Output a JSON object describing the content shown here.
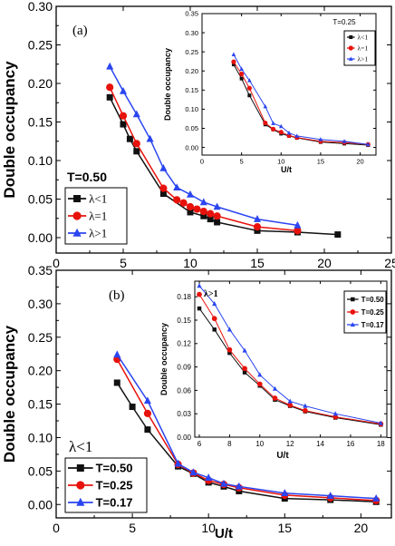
{
  "colors": {
    "black": "#111111",
    "red": "#e8120c",
    "blue": "#2b45f0"
  },
  "chart_data": [
    {
      "id": "a",
      "type": "line",
      "panel_label": "(a)",
      "annotation": "T=0.50",
      "ylabel": "Double occupancy",
      "xlabel": "",
      "xlim": [
        0,
        25
      ],
      "ylim": [
        -0.02,
        0.3
      ],
      "xticks": [
        0,
        5,
        10,
        15,
        20,
        25
      ],
      "yticks": [
        0.0,
        0.05,
        0.1,
        0.15,
        0.2,
        0.25,
        0.3
      ],
      "legend_position": "bottom-left",
      "series": [
        {
          "name": "λ<1",
          "color": "#111111",
          "marker": "square",
          "x": [
            4,
            5,
            5.5,
            6,
            8,
            10,
            11,
            11.5,
            12,
            15,
            18,
            21
          ],
          "y": [
            0.182,
            0.147,
            0.128,
            0.112,
            0.057,
            0.033,
            0.028,
            0.024,
            0.02,
            0.009,
            0.007,
            0.004
          ]
        },
        {
          "name": "λ=1",
          "color": "#e8120c",
          "marker": "circle",
          "x": [
            4,
            5,
            6,
            8,
            9,
            9.5,
            10,
            10.5,
            11,
            11.5,
            12,
            15,
            18
          ],
          "y": [
            0.195,
            0.158,
            0.122,
            0.064,
            0.049,
            0.045,
            0.04,
            0.037,
            0.034,
            0.031,
            0.028,
            0.014,
            0.009
          ]
        },
        {
          "name": "λ>1",
          "color": "#2b45f0",
          "marker": "triangle",
          "x": [
            4,
            5,
            6,
            7,
            8,
            9,
            10,
            11,
            12,
            15,
            18
          ],
          "y": [
            0.222,
            0.19,
            0.16,
            0.128,
            0.09,
            0.065,
            0.056,
            0.046,
            0.04,
            0.024,
            0.016
          ]
        }
      ],
      "inset": {
        "type": "line",
        "annotation": "T=0.25",
        "ylabel": "Double occupancy",
        "xlabel": "U/t",
        "xlim": [
          0,
          22
        ],
        "ylim": [
          -0.02,
          0.35
        ],
        "xticks": [
          0,
          5,
          10,
          15,
          20
        ],
        "yticks": [
          0.0,
          0.05,
          0.1,
          0.15,
          0.2,
          0.25,
          0.3,
          0.35
        ],
        "legend_position": "top-right",
        "series": [
          {
            "name": "λ<1",
            "color": "#111111",
            "marker": "square",
            "x": [
              4,
              5,
              6,
              8,
              9,
              10,
              11,
              12,
              15,
              18,
              21
            ],
            "y": [
              0.217,
              0.18,
              0.136,
              0.06,
              0.047,
              0.036,
              0.03,
              0.025,
              0.014,
              0.01,
              0.006
            ]
          },
          {
            "name": "λ=1",
            "color": "#e8120c",
            "marker": "circle",
            "x": [
              4,
              5,
              6,
              8,
              9,
              10,
              11,
              12,
              15,
              18,
              21
            ],
            "y": [
              0.224,
              0.192,
              0.155,
              0.064,
              0.048,
              0.04,
              0.031,
              0.026,
              0.016,
              0.013,
              0.008
            ]
          },
          {
            "name": "λ>1",
            "color": "#2b45f0",
            "marker": "triangle",
            "x": [
              4,
              5,
              6,
              8,
              9,
              10,
              11,
              12,
              15,
              18,
              21
            ],
            "y": [
              0.243,
              0.205,
              0.175,
              0.107,
              0.063,
              0.055,
              0.038,
              0.03,
              0.021,
              0.016,
              0.008
            ]
          }
        ]
      }
    },
    {
      "id": "b",
      "type": "line",
      "panel_label": "(b)",
      "annotation": "λ<1",
      "ylabel": "Double occupancy",
      "xlabel": "U/t",
      "xlim": [
        0,
        22
      ],
      "ylim": [
        -0.02,
        0.35
      ],
      "xticks": [
        0,
        5,
        10,
        15,
        20
      ],
      "yticks": [
        0.0,
        0.05,
        0.1,
        0.15,
        0.2,
        0.25,
        0.3,
        0.35
      ],
      "legend_position": "bottom-left",
      "series": [
        {
          "name": "T=0.50",
          "color": "#111111",
          "marker": "square",
          "x": [
            4,
            5,
            6,
            8,
            9,
            10,
            11,
            12,
            15,
            18,
            21
          ],
          "y": [
            0.182,
            0.146,
            0.112,
            0.057,
            0.046,
            0.033,
            0.027,
            0.02,
            0.009,
            0.007,
            0.004
          ]
        },
        {
          "name": "T=0.25",
          "color": "#e8120c",
          "marker": "circle",
          "x": [
            4,
            6,
            8,
            9,
            10,
            11,
            12,
            15,
            18,
            21
          ],
          "y": [
            0.217,
            0.136,
            0.06,
            0.047,
            0.036,
            0.03,
            0.025,
            0.014,
            0.01,
            0.006
          ]
        },
        {
          "name": "T=0.17",
          "color": "#2b45f0",
          "marker": "triangle",
          "x": [
            4,
            6,
            8,
            9,
            10,
            11,
            12,
            15,
            18,
            21
          ],
          "y": [
            0.224,
            0.155,
            0.061,
            0.048,
            0.04,
            0.031,
            0.027,
            0.017,
            0.013,
            0.009
          ]
        }
      ],
      "inset": {
        "type": "line",
        "annotation": "λ>1",
        "ylabel": "Double occupancy",
        "xlabel": "U/t",
        "xlim": [
          5.7,
          18.4
        ],
        "ylim": [
          0.0,
          0.2
        ],
        "xticks": [
          6,
          8,
          10,
          12,
          14,
          16,
          18
        ],
        "yticks": [
          0.0,
          0.03,
          0.06,
          0.09,
          0.12,
          0.15,
          0.18
        ],
        "legend_position": "top-right",
        "series": [
          {
            "name": "T=0.50",
            "color": "#111111",
            "marker": "square",
            "x": [
              6,
              7,
              8,
              9,
              10,
              11,
              12,
              13,
              15,
              18
            ],
            "y": [
              0.165,
              0.138,
              0.108,
              0.083,
              0.066,
              0.048,
              0.04,
              0.033,
              0.025,
              0.016
            ]
          },
          {
            "name": "T=0.25",
            "color": "#e8120c",
            "marker": "circle",
            "x": [
              6,
              7,
              8,
              9,
              10,
              11,
              12,
              13,
              15,
              18
            ],
            "y": [
              0.183,
              0.152,
              0.112,
              0.088,
              0.068,
              0.05,
              0.041,
              0.034,
              0.026,
              0.017
            ]
          },
          {
            "name": "T=0.17",
            "color": "#2b45f0",
            "marker": "triangle",
            "x": [
              6,
              7,
              8,
              9,
              10,
              11,
              12,
              13,
              15,
              18
            ],
            "y": [
              0.194,
              0.171,
              0.138,
              0.111,
              0.08,
              0.062,
              0.046,
              0.04,
              0.03,
              0.018
            ]
          }
        ]
      }
    }
  ]
}
